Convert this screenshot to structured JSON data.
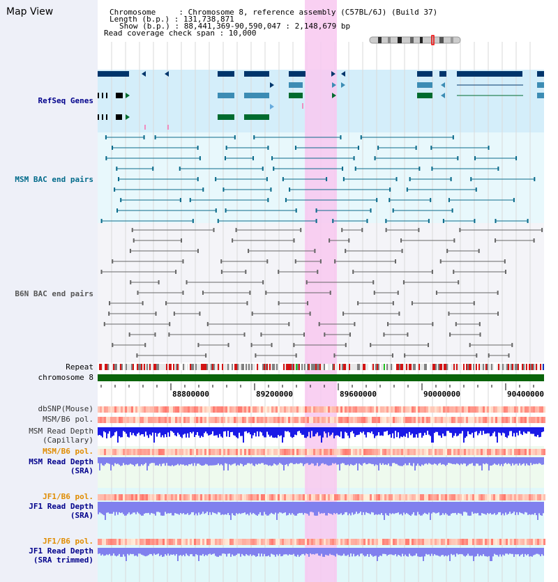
{
  "app_title": "Map View",
  "header": {
    "chromosome_line": "Chromosome     : Chromosome 8, reference assembly (C57BL/6J) (Build 37)",
    "length_line": "Length (b.p.) : 131,738,871",
    "show_line": "Show (b.p.) : 88,441,369-90,590,047 : 2,148,679 bp",
    "coverage_line": "Read coverage check span : 10,000"
  },
  "tracks": {
    "refseq": "RefSeq Genes",
    "msm_bac": "MSM BAC end pairs",
    "b6n_bac": "B6N BAC end pairs",
    "repeat": "Repeat",
    "chromosome": "chromosome 8",
    "dbsnp": "dbSNP(Mouse)",
    "msm_pol_1": "MSM/B6 pol.",
    "msm_depth_cap_1": "MSM Read Depth",
    "msm_depth_cap_2": "(Capillary)",
    "msm_pol_2": "MSM/B6 pol.",
    "msm_depth_sra_1": "MSM Read Depth",
    "msm_depth_sra_2": "(SRA)",
    "jf1_pol_1": "JF1/B6 pol.",
    "jf1_depth_sra_1": "JF1 Read Depth",
    "jf1_depth_sra_2": "(SRA)",
    "jf1_pol_2": "JF1/B6 pol.",
    "jf1_depth_trim_1": "JF1 Read Depth",
    "jf1_depth_trim_2": "(SRA trimmed)"
  },
  "axis": {
    "ticks": [
      "88800000",
      "89200000",
      "89600000",
      "90000000",
      "90400000"
    ]
  },
  "colors": {
    "refseq_label": "#00008b",
    "msm_label": "#006a8a",
    "b6n_label": "#555555",
    "pol_label": "#e08c00",
    "depth_label": "#00008b",
    "highlight": "#f8c8f0"
  }
}
